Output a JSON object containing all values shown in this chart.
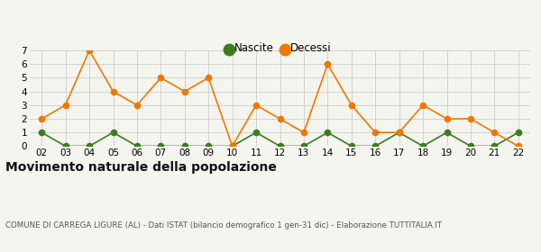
{
  "years": [
    "02",
    "03",
    "04",
    "05",
    "06",
    "07",
    "08",
    "09",
    "10",
    "11",
    "12",
    "13",
    "14",
    "15",
    "16",
    "17",
    "18",
    "19",
    "20",
    "21",
    "22"
  ],
  "nascite": [
    1,
    0,
    0,
    1,
    0,
    0,
    0,
    0,
    0,
    1,
    0,
    0,
    1,
    0,
    0,
    1,
    0,
    1,
    0,
    0,
    1
  ],
  "decessi": [
    2,
    3,
    7,
    4,
    3,
    5,
    4,
    5,
    0,
    3,
    2,
    1,
    6,
    3,
    1,
    1,
    3,
    2,
    2,
    1,
    0
  ],
  "nascite_color": "#3a7d1e",
  "decessi_color": "#f07800",
  "title": "Movimento naturale della popolazione",
  "subtitle": "COMUNE DI CARREGA LIGURE (AL) - Dati ISTAT (bilancio demografico 1 gen-31 dic) - Elaborazione TUTTITALIA.IT",
  "legend_nascite": "Nascite",
  "legend_decessi": "Decessi",
  "ylim": [
    0,
    7
  ],
  "yticks": [
    0,
    1,
    2,
    3,
    4,
    5,
    6,
    7
  ],
  "background_color": "#f5f5f0",
  "grid_color": "#cccccc",
  "title_fontsize": 10,
  "subtitle_fontsize": 6.2,
  "legend_fontsize": 8.5,
  "tick_fontsize": 7.5,
  "marker_size": 4.5,
  "line_width": 1.2
}
